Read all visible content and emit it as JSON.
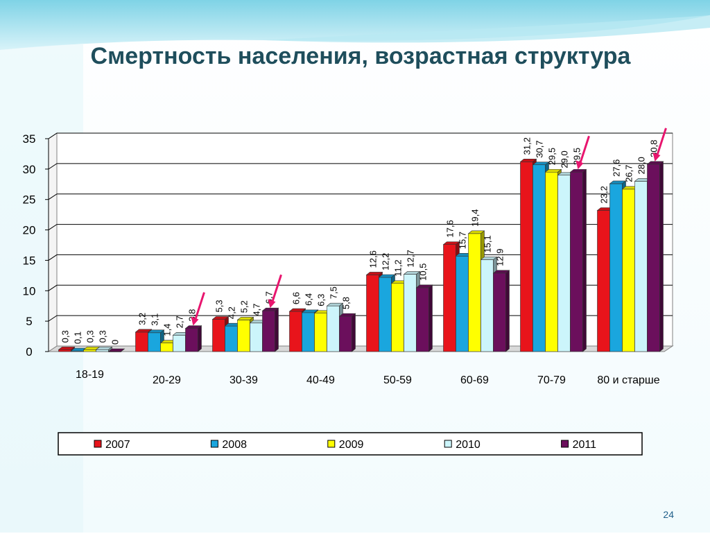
{
  "slide": {
    "title": "Смертность населения, возрастная структура",
    "page_number": "24"
  },
  "chart_data": {
    "type": "bar",
    "categories": [
      "18-19",
      "20-29",
      "30-39",
      "40-49",
      "50-59",
      "60-69",
      "70-79",
      "80 и старше"
    ],
    "series": [
      {
        "name": "2007",
        "color": "#e8141b",
        "values": [
          0.3,
          3.2,
          5.3,
          6.6,
          12.6,
          17.6,
          31.2,
          23.2
        ],
        "labels": [
          "0,3",
          "3,2",
          "5,3",
          "6,6",
          "12,6",
          "17,6",
          "31,2",
          "23,2"
        ]
      },
      {
        "name": "2008",
        "color": "#1aa6de",
        "values": [
          0.1,
          3.1,
          4.2,
          6.4,
          12.2,
          15.7,
          30.7,
          27.6
        ],
        "labels": [
          "0,1",
          "3,1",
          "4,2",
          "6,4",
          "12,2",
          "15,7",
          "30,7",
          "27,6"
        ]
      },
      {
        "name": "2009",
        "color": "#ffff00",
        "values": [
          0.3,
          1.4,
          5.2,
          6.3,
          11.2,
          19.4,
          29.5,
          26.7
        ],
        "labels": [
          "0,3",
          "1,4",
          "5,2",
          "6,3",
          "11,2",
          "19,4",
          "29,5",
          "26,7"
        ]
      },
      {
        "name": "2010",
        "color": "#ccf5fb",
        "values": [
          0.3,
          2.7,
          4.7,
          7.5,
          12.7,
          15.1,
          29.0,
          28.0
        ],
        "labels": [
          "0,3",
          "2,7",
          "4,7",
          "7,5",
          "12,7",
          "15,1",
          "29,0",
          "28,0"
        ]
      },
      {
        "name": "2011",
        "color": "#6b0f5c",
        "values": [
          0,
          3.8,
          6.7,
          5.8,
          10.5,
          12.9,
          29.5,
          30.8
        ],
        "labels": [
          "0",
          "3,8",
          "6,7",
          "5,8",
          "10,5",
          "12,9",
          "29,5",
          "30,8"
        ]
      }
    ],
    "ylim": [
      0,
      35
    ],
    "yticks": [
      0,
      5,
      10,
      15,
      20,
      25,
      30,
      35
    ],
    "grid": true,
    "legend": "bottom",
    "arrow_color": "#e8156e",
    "arrows_near": [
      "20-29",
      "30-39",
      "70-79",
      "80 и старше"
    ]
  }
}
